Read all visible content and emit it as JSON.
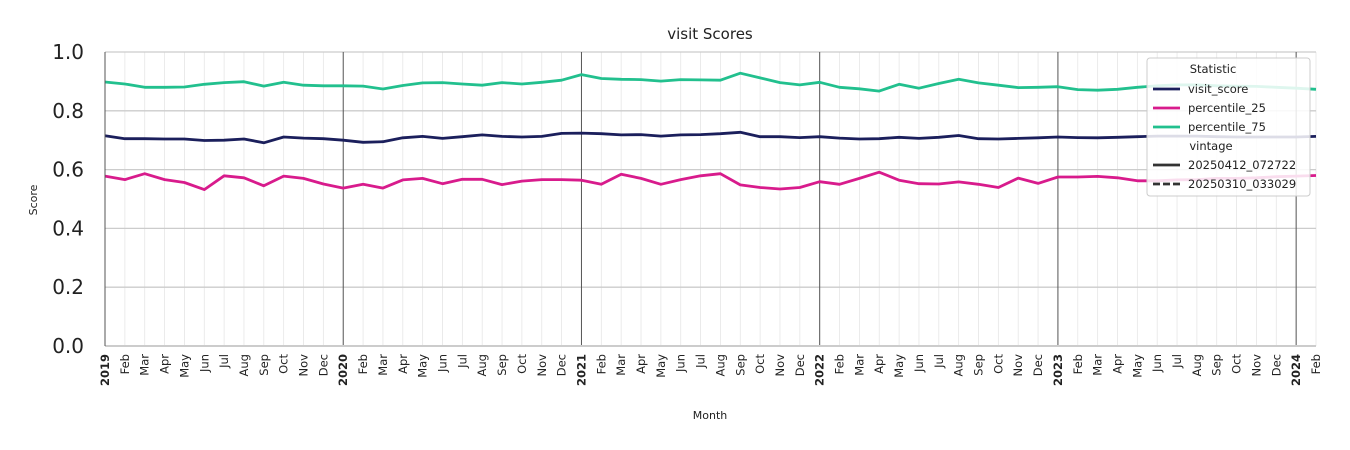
{
  "chart_data": {
    "type": "line",
    "title": "visit Scores",
    "xlabel": "Month",
    "ylabel": "Score",
    "ylim": [
      0,
      1
    ],
    "yticks": [
      "0.0",
      "0.2",
      "0.4",
      "0.6",
      "0.8",
      "1.0"
    ],
    "grid": true,
    "legend_position": "top-right",
    "x": [
      "2019-01",
      "2019-02",
      "2019-03",
      "2019-04",
      "2019-05",
      "2019-06",
      "2019-07",
      "2019-08",
      "2019-09",
      "2019-10",
      "2019-11",
      "2019-12",
      "2020-01",
      "2020-02",
      "2020-03",
      "2020-04",
      "2020-05",
      "2020-06",
      "2020-07",
      "2020-08",
      "2020-09",
      "2020-10",
      "2020-11",
      "2020-12",
      "2021-01",
      "2021-02",
      "2021-03",
      "2021-04",
      "2021-05",
      "2021-06",
      "2021-07",
      "2021-08",
      "2021-09",
      "2021-10",
      "2021-11",
      "2021-12",
      "2022-01",
      "2022-02",
      "2022-03",
      "2022-04",
      "2022-05",
      "2022-06",
      "2022-07",
      "2022-08",
      "2022-09",
      "2022-10",
      "2022-11",
      "2022-12",
      "2023-01",
      "2023-02",
      "2023-03",
      "2023-04",
      "2023-05",
      "2023-06",
      "2023-07",
      "2023-08",
      "2023-09",
      "2023-10",
      "2023-11",
      "2023-12",
      "2024-01",
      "2024-02"
    ],
    "xtick_labels": [
      "2019",
      "Feb",
      "Mar",
      "Apr",
      "May",
      "Jun",
      "Jul",
      "Aug",
      "Sep",
      "Oct",
      "Nov",
      "Dec",
      "2020",
      "Feb",
      "Mar",
      "Apr",
      "May",
      "Jun",
      "Jul",
      "Aug",
      "Sep",
      "Oct",
      "Nov",
      "Dec",
      "2021",
      "Feb",
      "Mar",
      "Apr",
      "May",
      "Jun",
      "Jul",
      "Aug",
      "Sep",
      "Oct",
      "Nov",
      "Dec",
      "2022",
      "Feb",
      "Mar",
      "Apr",
      "May",
      "Jun",
      "Jul",
      "Aug",
      "Sep",
      "Oct",
      "Nov",
      "Dec",
      "2023",
      "Feb",
      "Mar",
      "Apr",
      "May",
      "Jun",
      "Jul",
      "Aug",
      "Sep",
      "Oct",
      "Nov",
      "Dec",
      "2024",
      "Feb"
    ],
    "series": [
      {
        "name": "visit_score",
        "vintage": "20250412_072722",
        "color": "#1b1f5c",
        "values": [
          0.715,
          0.705,
          0.705,
          0.704,
          0.704,
          0.699,
          0.7,
          0.704,
          0.691,
          0.711,
          0.707,
          0.705,
          0.7,
          0.693,
          0.695,
          0.708,
          0.713,
          0.706,
          0.712,
          0.718,
          0.713,
          0.711,
          0.713,
          0.723,
          0.724,
          0.722,
          0.718,
          0.719,
          0.714,
          0.718,
          0.719,
          0.722,
          0.727,
          0.712,
          0.712,
          0.709,
          0.712,
          0.707,
          0.704,
          0.705,
          0.71,
          0.706,
          0.71,
          0.716,
          0.705,
          0.704,
          0.706,
          0.708,
          0.711,
          0.709,
          0.708,
          0.71,
          0.712,
          0.714,
          0.714,
          0.714,
          0.712,
          0.711,
          0.711,
          0.711,
          0.711,
          0.713
        ]
      },
      {
        "name": "percentile_25",
        "vintage": "20250412_072722",
        "color": "#d81b8c",
        "values": [
          0.578,
          0.566,
          0.586,
          0.566,
          0.556,
          0.532,
          0.579,
          0.572,
          0.545,
          0.578,
          0.57,
          0.551,
          0.537,
          0.55,
          0.537,
          0.565,
          0.57,
          0.552,
          0.567,
          0.567,
          0.549,
          0.561,
          0.566,
          0.566,
          0.564,
          0.55,
          0.584,
          0.57,
          0.55,
          0.566,
          0.579,
          0.586,
          0.548,
          0.539,
          0.534,
          0.539,
          0.559,
          0.55,
          0.57,
          0.591,
          0.564,
          0.552,
          0.551,
          0.558,
          0.55,
          0.539,
          0.571,
          0.553,
          0.575,
          0.575,
          0.577,
          0.572,
          0.562,
          0.562,
          0.565,
          0.566,
          0.57,
          0.57,
          0.572,
          0.576,
          0.578,
          0.58
        ]
      },
      {
        "name": "percentile_75",
        "vintage": "20250412_072722",
        "color": "#22c08e",
        "values": [
          0.898,
          0.891,
          0.88,
          0.88,
          0.881,
          0.89,
          0.896,
          0.899,
          0.884,
          0.897,
          0.887,
          0.885,
          0.885,
          0.884,
          0.874,
          0.886,
          0.895,
          0.896,
          0.891,
          0.887,
          0.896,
          0.891,
          0.897,
          0.904,
          0.923,
          0.91,
          0.907,
          0.906,
          0.901,
          0.906,
          0.905,
          0.904,
          0.928,
          0.912,
          0.896,
          0.888,
          0.897,
          0.88,
          0.875,
          0.867,
          0.89,
          0.877,
          0.893,
          0.907,
          0.895,
          0.887,
          0.879,
          0.88,
          0.882,
          0.872,
          0.87,
          0.873,
          0.88,
          0.885,
          0.888,
          0.888,
          0.885,
          0.884,
          0.883,
          0.88,
          0.877,
          0.873
        ]
      }
    ],
    "legend": {
      "statistic_title": "Statistic",
      "vintage_title": "vintage",
      "vintages": [
        {
          "name": "20250412_072722",
          "style": "solid"
        },
        {
          "name": "20250310_033029",
          "style": "dashed"
        }
      ]
    }
  }
}
